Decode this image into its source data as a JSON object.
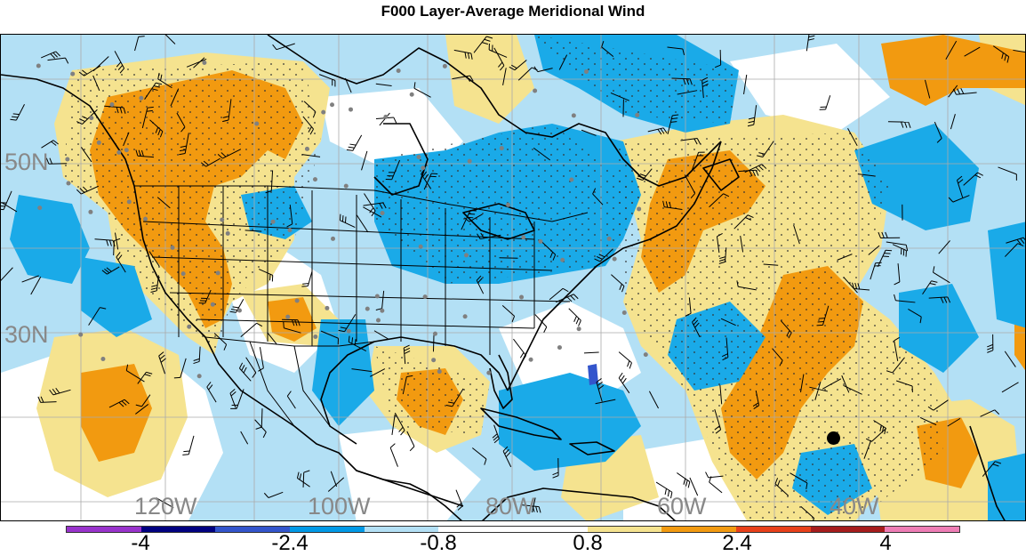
{
  "title": "F000 Layer-Average Meridional Wind",
  "lat_labels": [
    "50N",
    "30N"
  ],
  "lon_labels": [
    "120W",
    "100W",
    "80W",
    "60W",
    "40W"
  ],
  "colorbar": {
    "colors": [
      "#9933cc",
      "#000080",
      "#3355cc",
      "#0099e6",
      "#b3e0f5",
      "#ffffff",
      "#ffffff",
      "#f5e38f",
      "#f29a10",
      "#e8401a",
      "#a61c1c",
      "#ee7db5"
    ],
    "labels": [
      "-4",
      "-2.4",
      "-0.8",
      "0.8",
      "2.4",
      "4"
    ]
  },
  "fill_colors": {
    "light_blue": "#b3e0f5",
    "blue": "#1aaae8",
    "dark_blue": "#3355cc",
    "light_yellow": "#f5e38f",
    "orange": "#f29a10"
  },
  "line_colors": {
    "coast": "#000000",
    "barb": "#000000",
    "station": "#808080",
    "grid": "#aaaaaa"
  }
}
